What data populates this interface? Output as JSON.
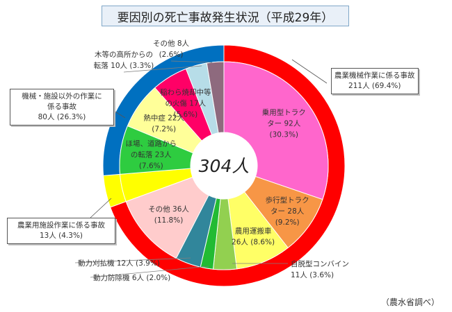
{
  "title": "要因別の死亡事故発生状況（平成29年）",
  "source_note": "（農水省調べ）",
  "chart_data": {
    "type": "pie",
    "center_label": "304人",
    "total": 304,
    "inner": [
      {
        "name": "乗用型トラクター",
        "label": [
          "乗用型トラク",
          "ター 92人",
          "(30.3%)"
        ],
        "value": 92,
        "color": "#ff66cc"
      },
      {
        "name": "歩行型トラクター",
        "label": [
          "歩行型トラク",
          "ター 28人",
          "(9.2%)"
        ],
        "value": 28,
        "color": "#f79646"
      },
      {
        "name": "農用運搬車",
        "label": [
          "農用運搬車",
          "26人 (8.6%)"
        ],
        "value": 26,
        "color": "#ffff66"
      },
      {
        "name": "自脱型コンバイン",
        "label": [
          "自脱型コンバイン",
          "11人 (3.6%)"
        ],
        "value": 11,
        "color": "#92d050"
      },
      {
        "name": "動力防除機",
        "label": [
          "動力防除機 6人 (2.0%)"
        ],
        "value": 6,
        "color": "#22bb33"
      },
      {
        "name": "動力刈払機",
        "label": [
          "動力刈払機 12人 (3.9%)"
        ],
        "value": 12,
        "color": "#31869b"
      },
      {
        "name": "その他",
        "label": [
          "その他 36人",
          "(11.8%)"
        ],
        "value": 36,
        "color": "#ffcccc"
      },
      {
        "name": "農業用施設作業",
        "label": [],
        "value": 13,
        "color": "#ffff00"
      },
      {
        "name": "ほ場、道路からの転落",
        "label": [
          "ほ場、道路から",
          "の転落 23人",
          "(7.6%)"
        ],
        "value": 23,
        "color": "#2ecc40"
      },
      {
        "name": "熱中症",
        "label": [
          "熱中症 22人",
          "(7.2%)"
        ],
        "value": 22,
        "color": "#ffff99"
      },
      {
        "name": "稲わら焼却中等の火傷",
        "label": [
          "稲わら焼却中等",
          "の火傷 17人",
          "(5.6%)"
        ],
        "value": 17,
        "color": "#ff0066"
      },
      {
        "name": "木等の高所からの転落",
        "label": [
          "木等の高所からの",
          "転落 10人 (3.3%)"
        ],
        "value": 10,
        "color": "#b7dde8"
      },
      {
        "name": "その他",
        "label": [
          "その他 8人",
          "(2.6%)"
        ],
        "value": 8,
        "color": "#8e6a7e"
      }
    ],
    "outer": [
      {
        "name": "農業機械作業に係る事故",
        "label": [
          "農業機械作業に係る事故",
          "211人 (69.4%)"
        ],
        "value": 211,
        "color": "#ff0000"
      },
      {
        "name": "農業用施設作業に係る事故",
        "label": [
          "農業用施設作業に係る事故",
          "13人 (4.3%)"
        ],
        "value": 13,
        "color": "#ffff00"
      },
      {
        "name": "機械・施設以外の作業に係る事故",
        "label": [
          "機械・施設以外の作業に",
          "係る事故",
          "80人 (26.3%)"
        ],
        "value": 80,
        "color": "#0070c0"
      }
    ]
  }
}
